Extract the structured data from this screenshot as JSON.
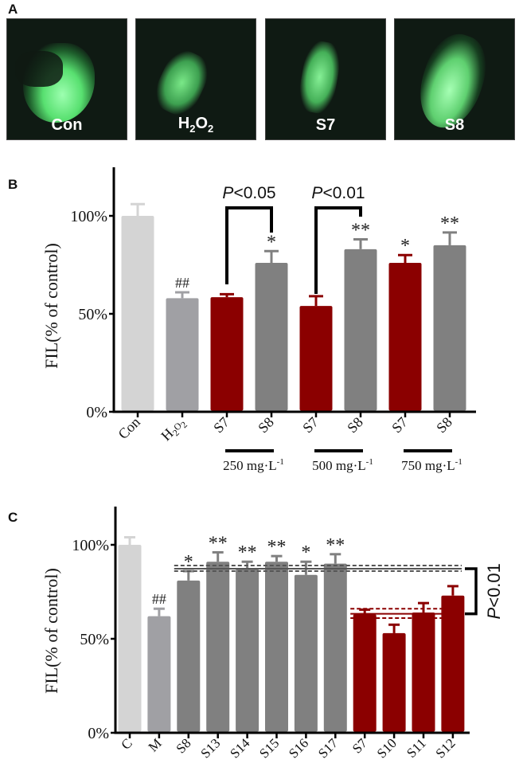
{
  "panel_a": {
    "letter": "A",
    "images": [
      {
        "label": "Con",
        "label_main": "Con",
        "sub": ""
      },
      {
        "label": "H2O2",
        "label_main": "H",
        "sub": "2",
        "label_mid": "O",
        "sub2": "2"
      },
      {
        "label": "S7",
        "label_main": "S7",
        "sub": ""
      },
      {
        "label": "S8",
        "label_main": "S8",
        "sub": ""
      }
    ],
    "fluorescence_color": "#7dff9a"
  },
  "chart_data": [
    {
      "panel": "B",
      "type": "bar",
      "ylabel": "FIL(% of control)",
      "ylim": [
        0,
        120
      ],
      "yticks": [
        0,
        50,
        100
      ],
      "ytick_labels": [
        "0%",
        "50%",
        "100%"
      ],
      "categories": [
        "Con",
        "H2O2",
        "S7",
        "S8",
        "S7",
        "S8",
        "S7",
        "S8"
      ],
      "values": [
        100,
        58,
        58.5,
        76,
        54,
        83,
        76,
        85
      ],
      "errors": [
        6,
        3,
        1.5,
        6,
        5,
        5,
        4,
        6.5
      ],
      "colors": [
        "#d4d4d4",
        "#a0a0a4",
        "#8b0000",
        "#808080",
        "#8b0000",
        "#808080",
        "#8b0000",
        "#808080"
      ],
      "annotations": [
        "",
        "##",
        "",
        "*",
        "",
        "**",
        "*",
        "**"
      ],
      "groups": [
        {
          "label": "250 mg·L",
          "sup": "-1",
          "members": [
            2,
            3
          ]
        },
        {
          "label": "500 mg·L",
          "sup": "-1",
          "members": [
            4,
            5
          ]
        },
        {
          "label": "750 mg·L",
          "sup": "-1",
          "members": [
            6,
            7
          ]
        }
      ],
      "brackets": [
        {
          "from": 2,
          "to": 3,
          "label_p": "P",
          "label_rest": "<0.05"
        },
        {
          "from": 4,
          "to": 5,
          "label_p": "P",
          "label_rest": "<0.01"
        }
      ],
      "grid": false,
      "legend": "none"
    },
    {
      "panel": "C",
      "type": "bar",
      "ylabel": "FIL(% of control)",
      "ylim": [
        0,
        120
      ],
      "yticks": [
        0,
        50,
        100
      ],
      "ytick_labels": [
        "0%",
        "50%",
        "100%"
      ],
      "categories": [
        "C",
        "M",
        "S8",
        "S13",
        "S14",
        "S15",
        "S16",
        "S17",
        "S7",
        "S10",
        "S11",
        "S12"
      ],
      "values": [
        100,
        62,
        81,
        91,
        87,
        91,
        84,
        90,
        63,
        53,
        64,
        73
      ],
      "errors": [
        4,
        4,
        5,
        5,
        4,
        3,
        7,
        5,
        2.5,
        4.5,
        5,
        5
      ],
      "colors": [
        "#d4d4d4",
        "#a0a0a4",
        "#808080",
        "#808080",
        "#808080",
        "#808080",
        "#808080",
        "#808080",
        "#8b0000",
        "#8b0000",
        "#8b0000",
        "#8b0000"
      ],
      "annotations": [
        "",
        "##",
        "*",
        "**",
        "**",
        "**",
        "*",
        "**",
        "",
        "",
        "",
        ""
      ],
      "reference_lines": [
        {
          "group": "gray",
          "mean": 87.3,
          "band": [
            86,
            89
          ],
          "from": 2,
          "to": 11,
          "color": "#555555"
        },
        {
          "group": "red",
          "mean": 63.3,
          "band": [
            61,
            66
          ],
          "from": 8,
          "to": 11,
          "color": "#8b0000"
        }
      ],
      "bracket": {
        "label_p": "P",
        "label_rest": "<0.01"
      },
      "grid": false,
      "legend": "none"
    }
  ]
}
